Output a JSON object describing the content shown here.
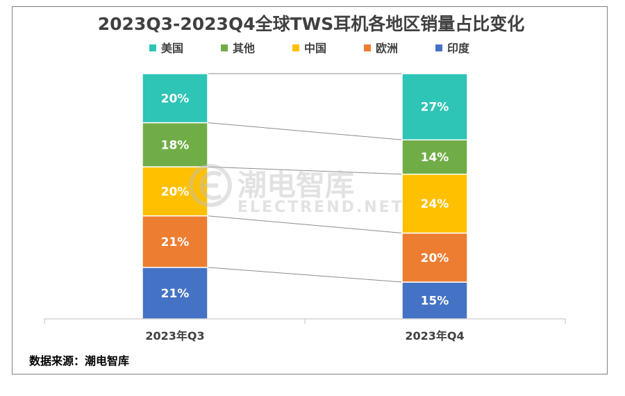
{
  "chart_data": {
    "type": "bar",
    "stacked": true,
    "percent": true,
    "title": "2023Q3-2023Q4全球TWS耳机各地区销量占比变化",
    "categories": [
      "2023年Q3",
      "2023年Q4"
    ],
    "ylim": [
      0,
      100
    ],
    "unit": "%",
    "grid": false,
    "legend_position": "top",
    "connector_lines": true,
    "series": [
      {
        "name": "印度",
        "color": "#4472c4",
        "values": [
          21,
          15
        ]
      },
      {
        "name": "欧洲",
        "color": "#ed7d31",
        "values": [
          21,
          20
        ]
      },
      {
        "name": "中国",
        "color": "#ffc000",
        "values": [
          20,
          24
        ]
      },
      {
        "name": "其他",
        "color": "#70ad47",
        "values": [
          18,
          14
        ]
      },
      {
        "name": "美国",
        "color": "#2ec4b6",
        "values": [
          20,
          27
        ]
      }
    ],
    "legend_order": [
      "美国",
      "其他",
      "中国",
      "欧洲",
      "印度"
    ]
  },
  "source": "数据来源：潮电智库",
  "watermark": {
    "name": "潮电智库",
    "url": "ELECTREND.NET"
  }
}
